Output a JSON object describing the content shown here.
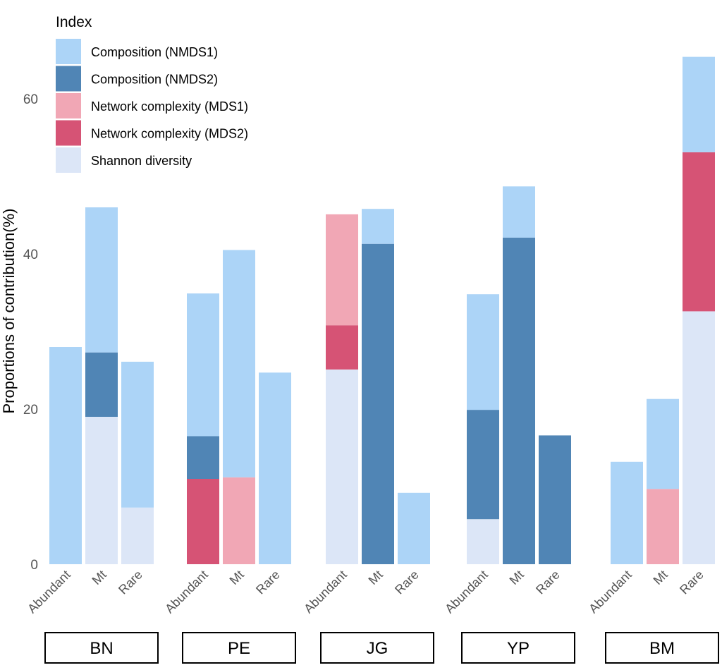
{
  "chart_data": {
    "type": "bar",
    "stacked": true,
    "ylabel": "Proportions of contribution(%)",
    "xlabel": "",
    "ylim": [
      0,
      67
    ],
    "yticks": [
      0,
      20,
      40,
      60
    ],
    "grid": false,
    "legend": {
      "title": "Index",
      "placement": "top-left",
      "entries": [
        {
          "key": "nmds1",
          "label": "Composition (NMDS1)",
          "color": "#acd4f7"
        },
        {
          "key": "nmds2",
          "label": "Composition (NMDS2)",
          "color": "#5085b5"
        },
        {
          "key": "mds1",
          "label": "Network complexity (MDS1)",
          "color": "#f1a7b5"
        },
        {
          "key": "mds2",
          "label": "Network complexity (MDS2)",
          "color": "#d65375"
        },
        {
          "key": "shannon",
          "label": "Shannon diversity",
          "color": "#dce6f7"
        }
      ]
    },
    "stack_order": [
      "shannon",
      "mds2",
      "mds1",
      "nmds2",
      "nmds1"
    ],
    "groups": [
      {
        "name": "BN",
        "bars": [
          {
            "category": "Abundant",
            "values": {
              "nmds1": 28.0
            }
          },
          {
            "category": "Mt",
            "values": {
              "shannon": 19.0,
              "nmds2": 8.3,
              "nmds1": 18.7
            }
          },
          {
            "category": "Rare",
            "values": {
              "shannon": 7.3,
              "nmds1": 18.8
            }
          }
        ]
      },
      {
        "name": "PE",
        "bars": [
          {
            "category": "Abundant",
            "values": {
              "mds2": 11.0,
              "nmds2": 5.5,
              "nmds1": 18.4
            }
          },
          {
            "category": "Mt",
            "values": {
              "mds1": 11.2,
              "nmds1": 29.3
            }
          },
          {
            "category": "Rare",
            "values": {
              "nmds1": 24.7
            }
          }
        ]
      },
      {
        "name": "JG",
        "bars": [
          {
            "category": "Abundant",
            "values": {
              "shannon": 25.1,
              "mds2": 5.7,
              "mds1": 14.3
            }
          },
          {
            "category": "Mt",
            "values": {
              "nmds2": 41.3,
              "nmds1": 4.5
            }
          },
          {
            "category": "Rare",
            "values": {
              "nmds1": 9.2
            }
          }
        ]
      },
      {
        "name": "YP",
        "bars": [
          {
            "category": "Abundant",
            "values": {
              "shannon": 5.8,
              "nmds2": 14.1,
              "nmds1": 14.9
            }
          },
          {
            "category": "Mt",
            "values": {
              "nmds2": 42.1,
              "nmds1": 6.6
            }
          },
          {
            "category": "Rare",
            "values": {
              "nmds2": 16.6
            }
          }
        ]
      },
      {
        "name": "BM",
        "bars": [
          {
            "category": "Abundant",
            "values": {
              "nmds1": 13.2
            }
          },
          {
            "category": "Mt",
            "values": {
              "mds1": 9.7,
              "nmds1": 11.6
            }
          },
          {
            "category": "Rare",
            "values": {
              "shannon": 32.6,
              "mds2": 20.5,
              "nmds1": 12.3
            }
          }
        ]
      }
    ]
  }
}
